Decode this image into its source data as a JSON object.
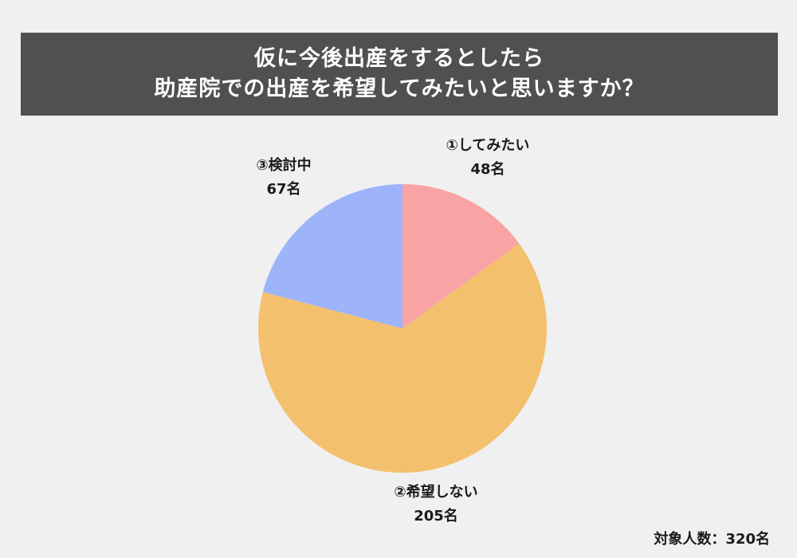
{
  "title": {
    "line1": "仮に今後出産をするとしたら",
    "line2": "助産院での出産を希望してみたいと思いますか？"
  },
  "chart_data": {
    "type": "pie",
    "title": "仮に今後出産をするとしたら助産院での出産を希望してみたいと思いますか？",
    "start_angle": "12 o'clock",
    "direction": "clockwise",
    "slices": [
      {
        "label": "①してみたい",
        "value": 48,
        "value_label": "48名",
        "color": "#f9a3a4"
      },
      {
        "label": "②希望しない",
        "value": 205,
        "value_label": "205名",
        "color": "#f3c06e"
      },
      {
        "label": "③検討中",
        "value": 67,
        "value_label": "67名",
        "color": "#9db4fb"
      }
    ]
  },
  "footer": {
    "respondents": "対象人数：320名"
  }
}
